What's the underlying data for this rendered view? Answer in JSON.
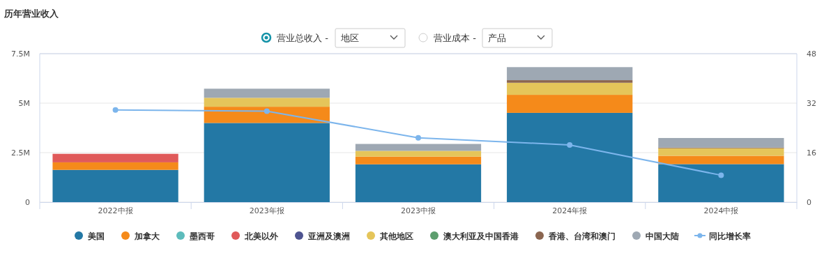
{
  "chart_data": {
    "type": "bar",
    "title": "历年营业收入",
    "stacked": true,
    "legend": "bottom",
    "grid": "y",
    "marker": "circle",
    "annotations": [
      "营业总收入 -",
      "地区",
      "营业成本 -",
      "产品"
    ],
    "categories": [
      "2022中报",
      "2023年报",
      "2023中报",
      "2024年报",
      "2024中报"
    ],
    "ylim": [
      0,
      7.5
    ],
    "yticks": [
      0,
      {
        "value": 2.5,
        "label": "2.5M"
      },
      {
        "value": 5,
        "label": "5M"
      },
      {
        "value": 7.5,
        "label": "7.5M"
      }
    ],
    "y2lim": [
      0,
      48
    ],
    "y2ticks": [
      0,
      16,
      32,
      48
    ],
    "series": [
      {
        "name": "美国",
        "color": "#2378a5",
        "values": [
          1.63,
          4.0,
          1.91,
          4.51,
          1.92
        ]
      },
      {
        "name": "加拿大",
        "color": "#f58a1a",
        "values": [
          0.38,
          0.82,
          0.39,
          0.91,
          0.42
        ]
      },
      {
        "name": "墨西哥",
        "color": "#5dbcbc",
        "values": [
          null,
          null,
          null,
          null,
          null
        ]
      },
      {
        "name": "北美以外",
        "color": "#e05a5a",
        "values": [
          0.43,
          null,
          null,
          null,
          null
        ]
      },
      {
        "name": "亚洲及澳洲",
        "color": "#4e5490",
        "values": [
          null,
          null,
          null,
          null,
          null
        ]
      },
      {
        "name": "其他地区",
        "color": "#e5c55a",
        "values": [
          null,
          0.45,
          0.29,
          0.61,
          0.38
        ]
      },
      {
        "name": "澳大利亚及中国香港",
        "color": "#5d9e6e",
        "values": [
          null,
          null,
          null,
          null,
          null
        ]
      },
      {
        "name": "香港、台湾和澳门",
        "color": "#8b6650",
        "values": [
          null,
          null,
          null,
          0.13,
          0.04
        ]
      },
      {
        "name": "中国大陆",
        "color": "#9ea8b3",
        "values": [
          null,
          0.46,
          0.35,
          0.66,
          0.48
        ]
      },
      {
        "name": "同比增长率",
        "type": "line",
        "axis": "y2",
        "color": "#7cb5ec",
        "values": [
          29.8,
          29.4,
          20.8,
          18.5,
          8.7
        ]
      }
    ]
  }
}
